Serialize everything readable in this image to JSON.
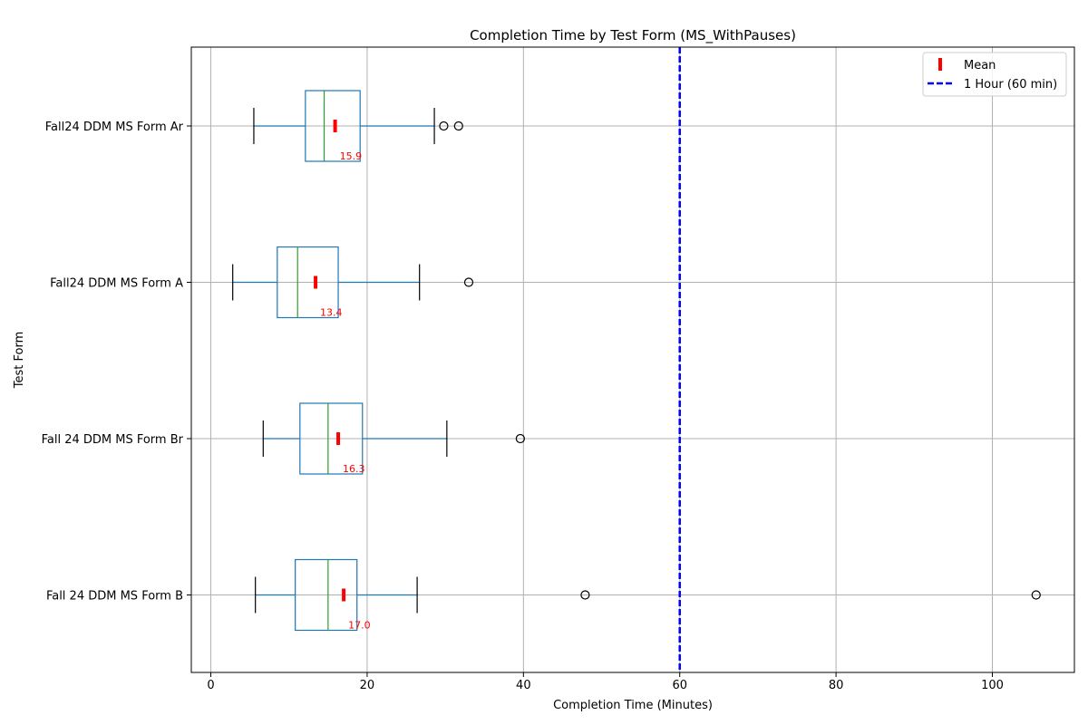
{
  "chart_data": {
    "type": "boxplot",
    "orientation": "horizontal",
    "title": "Completion Time by Test Form (MS_WithPauses)",
    "xlabel": "Completion Time (Minutes)",
    "ylabel": "Test Form",
    "xlim": [
      -2.5,
      110.5
    ],
    "xticks": [
      0,
      20,
      40,
      60,
      80,
      100
    ],
    "grid": true,
    "legend": {
      "placement": "top-right",
      "mean_label": "Mean",
      "reference_label": "1 Hour (60 min)"
    },
    "reference_line": {
      "x": 60,
      "color": "#0000ff"
    },
    "colors": {
      "box": "#1f77b4",
      "median": "#2ca02c",
      "mean": "#ff0000",
      "whisker_cap": "#000000",
      "grid": "#b0b0b0"
    },
    "forms": [
      {
        "name": "Fall24 DDM MS Form Ar",
        "whisker_low": 5.5,
        "q1": 12.1,
        "median": 14.5,
        "q3": 19.1,
        "whisker_high": 28.6,
        "mean": 15.9,
        "mean_label": "15.9",
        "outliers": [
          29.8,
          31.7
        ]
      },
      {
        "name": "Fall24 DDM MS Form A",
        "whisker_low": 2.8,
        "q1": 8.5,
        "median": 11.1,
        "q3": 16.3,
        "whisker_high": 26.7,
        "mean": 13.4,
        "mean_label": "13.4",
        "outliers": [
          33.0
        ]
      },
      {
        "name": "Fall 24 DDM MS Form Br",
        "whisker_low": 6.7,
        "q1": 11.4,
        "median": 15.0,
        "q3": 19.4,
        "whisker_high": 30.2,
        "mean": 16.3,
        "mean_label": "16.3",
        "outliers": [
          39.6
        ]
      },
      {
        "name": "Fall 24 DDM MS Form B",
        "whisker_low": 5.7,
        "q1": 10.8,
        "median": 15.0,
        "q3": 18.7,
        "whisker_high": 26.4,
        "mean": 17.0,
        "mean_label": "17.0",
        "outliers": [
          47.9,
          105.6
        ]
      }
    ]
  }
}
